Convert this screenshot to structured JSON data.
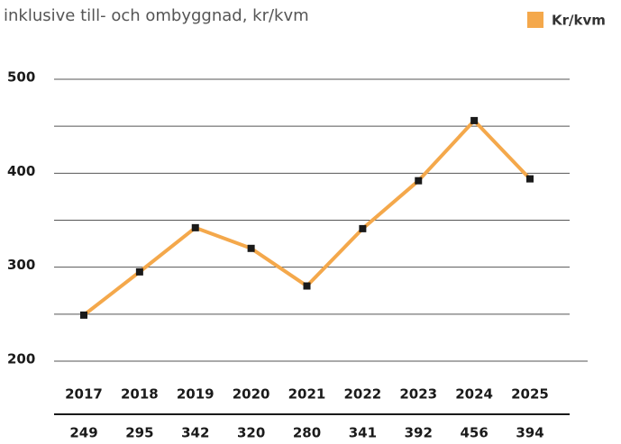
{
  "chart_data": {
    "type": "line",
    "title": "inklusive till- och ombyggnad, kr/kvm",
    "categories": [
      "2017",
      "2018",
      "2019",
      "2020",
      "2021",
      "2022",
      "2023",
      "2024",
      "2025"
    ],
    "series": [
      {
        "name": "Kr/kvm",
        "color": "#f4a84b",
        "marker_color": "#1a1a1a",
        "values": [
          249,
          295,
          342,
          320,
          280,
          341,
          392,
          456,
          394
        ]
      }
    ],
    "ylim": [
      200,
      500
    ],
    "yticks": [
      200,
      300,
      400,
      500
    ],
    "minor_yticks": [
      250,
      350,
      450
    ],
    "grid": true,
    "legend": "top-right",
    "value_table": true
  }
}
